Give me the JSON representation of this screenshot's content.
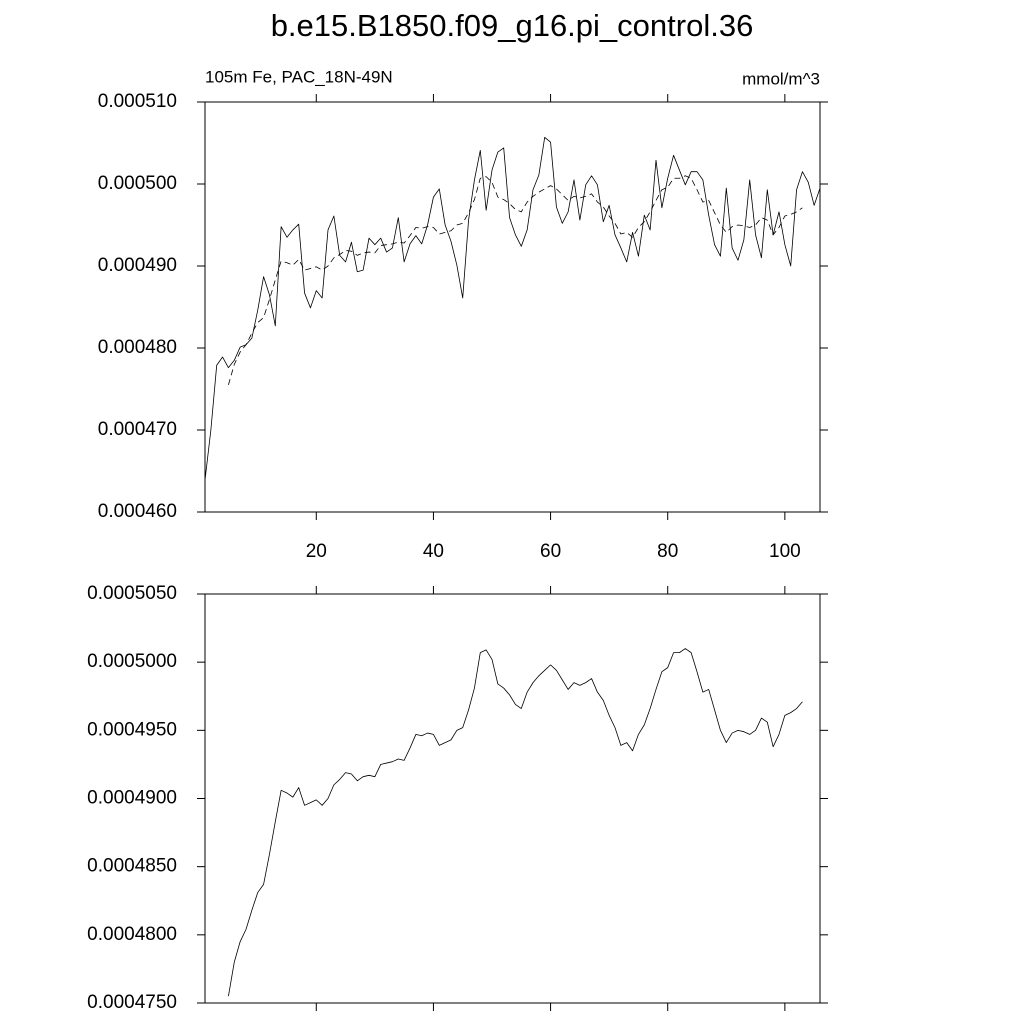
{
  "title": "b.e15.B1850.f09_g16.pi_control.36",
  "chart_data": [
    {
      "type": "line",
      "left_string": "105m Fe, PAC_18N-49N",
      "right_string": "mmol/m^3",
      "x": [
        1,
        2,
        3,
        4,
        5,
        6,
        7,
        8,
        9,
        10,
        11,
        12,
        13,
        14,
        15,
        16,
        17,
        18,
        19,
        20,
        21,
        22,
        23,
        24,
        25,
        26,
        27,
        28,
        29,
        30,
        31,
        32,
        33,
        34,
        35,
        36,
        37,
        38,
        39,
        40,
        41,
        42,
        43,
        44,
        45,
        46,
        47,
        48,
        49,
        50,
        51,
        52,
        53,
        54,
        55,
        56,
        57,
        58,
        59,
        60,
        61,
        62,
        63,
        64,
        65,
        66,
        67,
        68,
        69,
        70,
        71,
        72,
        73,
        74,
        75,
        76,
        77,
        78,
        79,
        80,
        81,
        82,
        83,
        84,
        85,
        86,
        87,
        88,
        89,
        90,
        91,
        92,
        93,
        94,
        95,
        96,
        97,
        98,
        99,
        100,
        101,
        102,
        103,
        104,
        105,
        106
      ],
      "xlim": [
        1,
        106
      ],
      "xticks": [
        20,
        40,
        60,
        80,
        100
      ],
      "ylim": [
        0.00046,
        0.00051
      ],
      "yticks": [
        {
          "value": 0.00046,
          "label": "0.000460"
        },
        {
          "value": 0.00047,
          "label": "0.000470"
        },
        {
          "value": 0.00048,
          "label": "0.000480"
        },
        {
          "value": 0.00049,
          "label": "0.000490"
        },
        {
          "value": 0.0005,
          "label": "0.000500"
        },
        {
          "value": 0.00051,
          "label": "0.000510"
        }
      ],
      "series": [
        {
          "color": "#000000",
          "dash": false,
          "values": [
            0.0004639,
            0.00047,
            0.0004779,
            0.0004789,
            0.0004776,
            0.0004785,
            0.0004801,
            0.0004804,
            0.0004812,
            0.0004846,
            0.0004887,
            0.0004865,
            0.0004827,
            0.0004948,
            0.0004935,
            0.0004944,
            0.0004951,
            0.0004867,
            0.0004849,
            0.000487,
            0.0004861,
            0.0004944,
            0.0004961,
            0.0004913,
            0.0004905,
            0.0004929,
            0.0004893,
            0.0004895,
            0.0004934,
            0.0004926,
            0.0004934,
            0.0004917,
            0.0004922,
            0.0004959,
            0.0004905,
            0.0004927,
            0.0004937,
            0.0004927,
            0.000495,
            0.0004984,
            0.0004994,
            0.000495,
            0.000493,
            0.0004901,
            0.0004861,
            0.0004956,
            0.0005005,
            0.0005041,
            0.0004968,
            0.0005017,
            0.0005039,
            0.0005044,
            0.0004959,
            0.0004938,
            0.0004924,
            0.0004944,
            0.0004993,
            0.0005011,
            0.0005057,
            0.0005051,
            0.0004972,
            0.0004952,
            0.0004966,
            0.0005005,
            0.0004956,
            0.0004999,
            0.000501,
            0.0004999,
            0.0004954,
            0.0004974,
            0.0004938,
            0.0004922,
            0.0004905,
            0.0004941,
            0.0004912,
            0.0004962,
            0.0004944,
            0.0005029,
            0.0004971,
            0.0005007,
            0.0005035,
            0.0005017,
            0.0004999,
            0.0005015,
            0.0005015,
            0.0005005,
            0.0004962,
            0.0004926,
            0.0004912,
            0.0004995,
            0.0004922,
            0.0004907,
            0.0004932,
            0.0005005,
            0.0004938,
            0.000491,
            0.0004993,
            0.0004938,
            0.0004966,
            0.0004926,
            0.00049,
            0.0004993,
            0.0005015,
            0.0005002,
            0.0004974,
            0.0004995
          ]
        },
        {
          "color": "#000000",
          "dash": true,
          "values": [
            null,
            null,
            null,
            null,
            0.0004755,
            0.000478,
            0.0004795,
            0.0004804,
            0.0004818,
            0.0004831,
            0.0004837,
            0.0004859,
            0.0004883,
            0.0004906,
            0.0004904,
            0.0004901,
            0.0004908,
            0.0004895,
            0.0004897,
            0.0004899,
            0.0004895,
            0.00049,
            0.000491,
            0.0004914,
            0.0004919,
            0.0004918,
            0.0004913,
            0.0004916,
            0.0004917,
            0.0004916,
            0.0004925,
            0.0004926,
            0.0004927,
            0.0004929,
            0.0004928,
            0.0004937,
            0.0004947,
            0.0004946,
            0.0004948,
            0.0004947,
            0.0004939,
            0.0004941,
            0.0004943,
            0.000495,
            0.0004952,
            0.0004965,
            0.0004981,
            0.0005007,
            0.0005009,
            0.0005002,
            0.0004984,
            0.0004981,
            0.0004976,
            0.0004969,
            0.0004966,
            0.0004978,
            0.0004985,
            0.000499,
            0.0004994,
            0.0004998,
            0.0004994,
            0.0004987,
            0.000498,
            0.0004985,
            0.0004983,
            0.0004985,
            0.0004988,
            0.0004978,
            0.0004972,
            0.0004961,
            0.0004952,
            0.0004939,
            0.0004941,
            0.0004935,
            0.0004947,
            0.0004954,
            0.0004966,
            0.000498,
            0.0004993,
            0.0004996,
            0.0005007,
            0.0005007,
            0.000501,
            0.0005007,
            0.0004993,
            0.0004978,
            0.000498,
            0.0004965,
            0.000495,
            0.0004941,
            0.0004948,
            0.000495,
            0.0004949,
            0.0004947,
            0.000495,
            0.0004959,
            0.0004956,
            0.0004938,
            0.0004947,
            0.0004961,
            0.0004963,
            0.0004966,
            0.0004971,
            null,
            null,
            null
          ]
        }
      ]
    },
    {
      "type": "line",
      "x": [
        5,
        6,
        7,
        8,
        9,
        10,
        11,
        12,
        13,
        14,
        15,
        16,
        17,
        18,
        19,
        20,
        21,
        22,
        23,
        24,
        25,
        26,
        27,
        28,
        29,
        30,
        31,
        32,
        33,
        34,
        35,
        36,
        37,
        38,
        39,
        40,
        41,
        42,
        43,
        44,
        45,
        46,
        47,
        48,
        49,
        50,
        51,
        52,
        53,
        54,
        55,
        56,
        57,
        58,
        59,
        60,
        61,
        62,
        63,
        64,
        65,
        66,
        67,
        68,
        69,
        70,
        71,
        72,
        73,
        74,
        75,
        76,
        77,
        78,
        79,
        80,
        81,
        82,
        83,
        84,
        85,
        86,
        87,
        88,
        89,
        90,
        91,
        92,
        93,
        94,
        95,
        96,
        97,
        98,
        99,
        100,
        101,
        102,
        103
      ],
      "xlim": [
        1,
        106
      ],
      "xticks": [
        20,
        40,
        60,
        80,
        100
      ],
      "ylim": [
        0.000475,
        0.000505
      ],
      "yticks": [
        {
          "value": 0.000475,
          "label": "0.0004750"
        },
        {
          "value": 0.00048,
          "label": "0.0004800"
        },
        {
          "value": 0.000485,
          "label": "0.0004850"
        },
        {
          "value": 0.00049,
          "label": "0.0004900"
        },
        {
          "value": 0.000495,
          "label": "0.0004950"
        },
        {
          "value": 0.0005,
          "label": "0.0005000"
        },
        {
          "value": 0.000505,
          "label": "0.0005050"
        }
      ],
      "series": [
        {
          "color": "#000000",
          "dash": false,
          "values": [
            0.0004755,
            0.000478,
            0.0004795,
            0.0004804,
            0.0004818,
            0.0004831,
            0.0004837,
            0.0004859,
            0.0004883,
            0.0004906,
            0.0004904,
            0.0004901,
            0.0004908,
            0.0004895,
            0.0004897,
            0.0004899,
            0.0004895,
            0.00049,
            0.000491,
            0.0004914,
            0.0004919,
            0.0004918,
            0.0004913,
            0.0004916,
            0.0004917,
            0.0004916,
            0.0004925,
            0.0004926,
            0.0004927,
            0.0004929,
            0.0004928,
            0.0004937,
            0.0004947,
            0.0004946,
            0.0004948,
            0.0004947,
            0.0004939,
            0.0004941,
            0.0004943,
            0.000495,
            0.0004952,
            0.0004965,
            0.0004981,
            0.0005007,
            0.0005009,
            0.0005002,
            0.0004984,
            0.0004981,
            0.0004976,
            0.0004969,
            0.0004966,
            0.0004978,
            0.0004985,
            0.000499,
            0.0004994,
            0.0004998,
            0.0004994,
            0.0004987,
            0.000498,
            0.0004985,
            0.0004983,
            0.0004985,
            0.0004988,
            0.0004978,
            0.0004972,
            0.0004961,
            0.0004952,
            0.0004939,
            0.0004941,
            0.0004935,
            0.0004947,
            0.0004954,
            0.0004966,
            0.000498,
            0.0004993,
            0.0004996,
            0.0005007,
            0.0005007,
            0.000501,
            0.0005007,
            0.0004993,
            0.0004978,
            0.000498,
            0.0004965,
            0.000495,
            0.0004941,
            0.0004948,
            0.000495,
            0.0004949,
            0.0004947,
            0.000495,
            0.0004959,
            0.0004956,
            0.0004938,
            0.0004947,
            0.0004961,
            0.0004963,
            0.0004966,
            0.0004971
          ]
        }
      ]
    }
  ]
}
